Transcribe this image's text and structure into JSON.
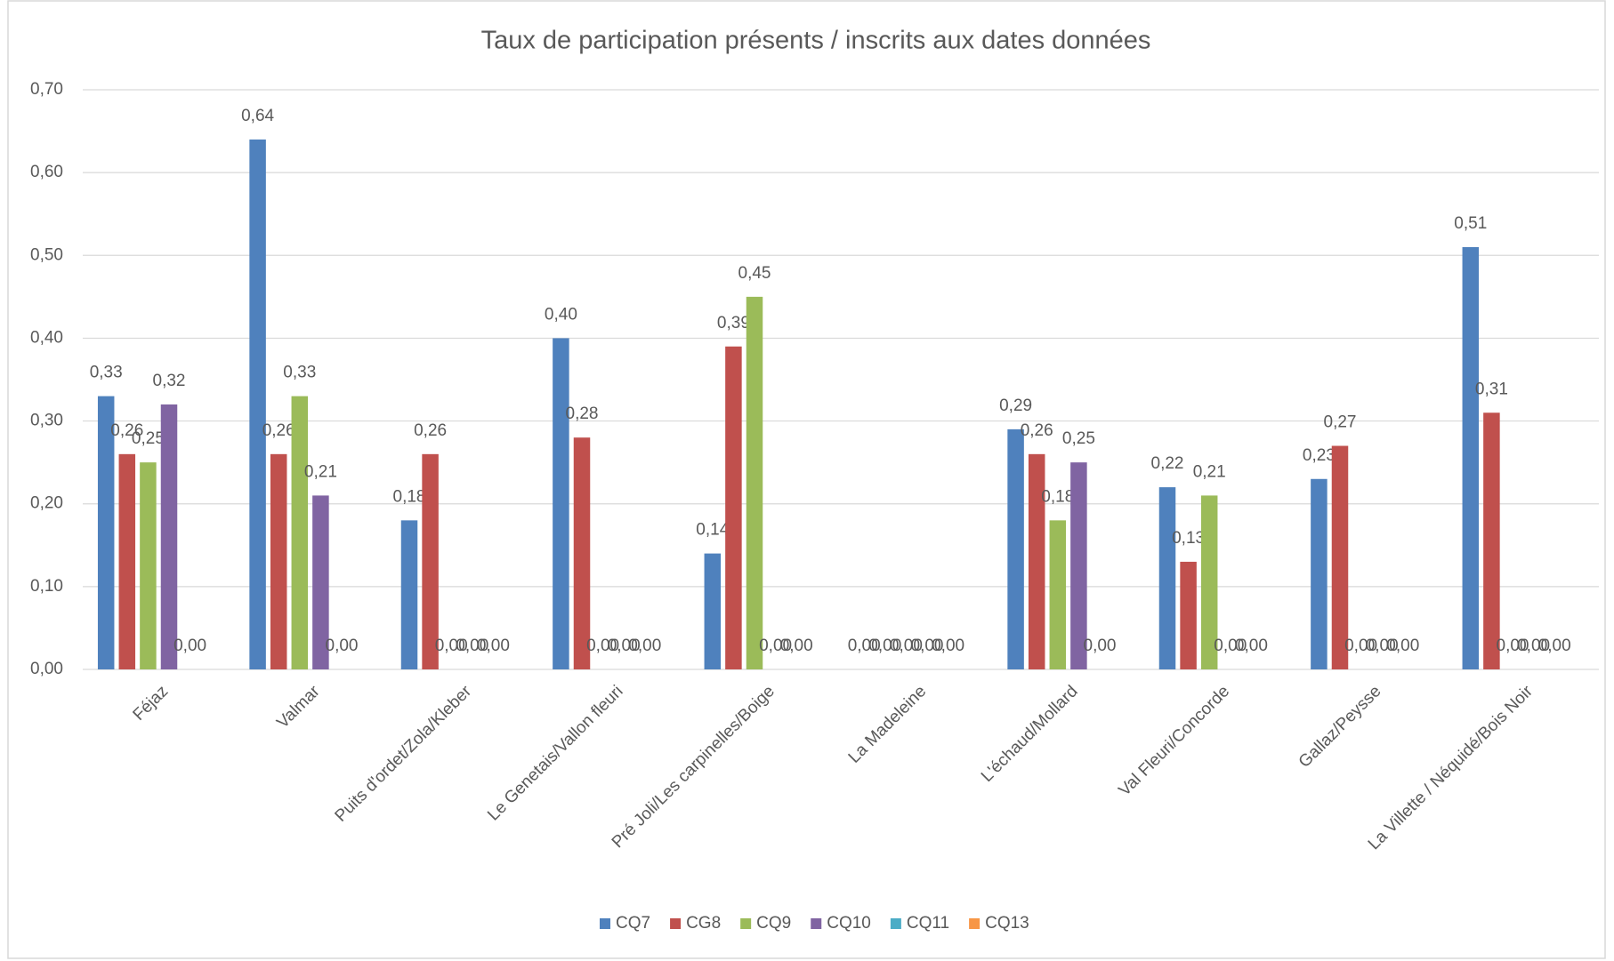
{
  "chart_data": {
    "type": "bar",
    "title": "Taux de participation présents / inscrits aux dates données",
    "categories": [
      "Féjaz",
      "Valmar",
      "Puits d'ordet/Zola/Kleber",
      "Le Genetais/Vallon fleuri",
      "Pré Joli/Les carpinelles/Boige",
      "La Madeleine",
      "L'échaud/Mollard",
      "Val Fleuri/Concorde",
      "Gallaz/Peysse",
      "La Villette / Néquidé/Bois Noir"
    ],
    "series": [
      {
        "name": "CQ7",
        "color": "#4f81bd",
        "values": [
          0.33,
          0.64,
          0.18,
          0.4,
          0.14,
          0,
          0.29,
          0.22,
          0.23,
          0.51
        ],
        "value_labels": [
          "0,33",
          "0,64",
          "0,18",
          "0,40",
          "0,14",
          "0,00",
          "0,29",
          "0,22",
          "0,23",
          "0,51"
        ]
      },
      {
        "name": "CG8",
        "color": "#c0504d",
        "values": [
          0.26,
          0.26,
          0.26,
          0.28,
          0.39,
          0,
          0.26,
          0.13,
          0.27,
          0.31
        ],
        "value_labels": [
          "0,26",
          "0,26",
          "0,26",
          "0,28",
          "0,39",
          "0,00",
          "0,26",
          "0,13",
          "0,27",
          "0,31"
        ]
      },
      {
        "name": "CQ9",
        "color": "#9bbb59",
        "values": [
          0.25,
          0.33,
          0,
          0,
          0.45,
          0,
          0.18,
          0.21,
          0,
          0
        ],
        "value_labels": [
          "0,25",
          "0,33",
          "0,00",
          "0,00",
          "0,45",
          "0,00",
          "0,18",
          "0,21",
          "0,00",
          "0,00"
        ]
      },
      {
        "name": "CQ10",
        "color": "#8064a2",
        "values": [
          0.32,
          0.21,
          0,
          0,
          0,
          0,
          0.25,
          0,
          0,
          0
        ],
        "value_labels": [
          "0,32",
          "0,21",
          "0,00",
          "0,00",
          "0,00",
          "0,00",
          "0,25",
          "0,00",
          "0,00",
          "0,00"
        ]
      },
      {
        "name": "CQ11",
        "color": "#4bacc6",
        "values": [
          0,
          0,
          0,
          0,
          0,
          0,
          0,
          0,
          0,
          0
        ],
        "value_labels": [
          "0,00",
          "0,00",
          "0,00",
          "0,00",
          "0,00",
          "0,00",
          "0,00",
          "0,00",
          "0,00",
          "0,00"
        ]
      },
      {
        "name": "CQ13",
        "color": "#f79646",
        "values": [
          null,
          null,
          null,
          null,
          null,
          null,
          null,
          null,
          null,
          null
        ]
      }
    ],
    "ylim": [
      0,
      0.7
    ],
    "yticks": [
      {
        "value": 0,
        "label": "0,00"
      },
      {
        "value": 0.1,
        "label": "0,10"
      },
      {
        "value": 0.2,
        "label": "0,20"
      },
      {
        "value": 0.3,
        "label": "0,30"
      },
      {
        "value": 0.4,
        "label": "0,40"
      },
      {
        "value": 0.5,
        "label": "0,50"
      },
      {
        "value": 0.6,
        "label": "0,60"
      },
      {
        "value": 0.7,
        "label": "0,70"
      }
    ],
    "grid": true,
    "legend": "bottom"
  }
}
